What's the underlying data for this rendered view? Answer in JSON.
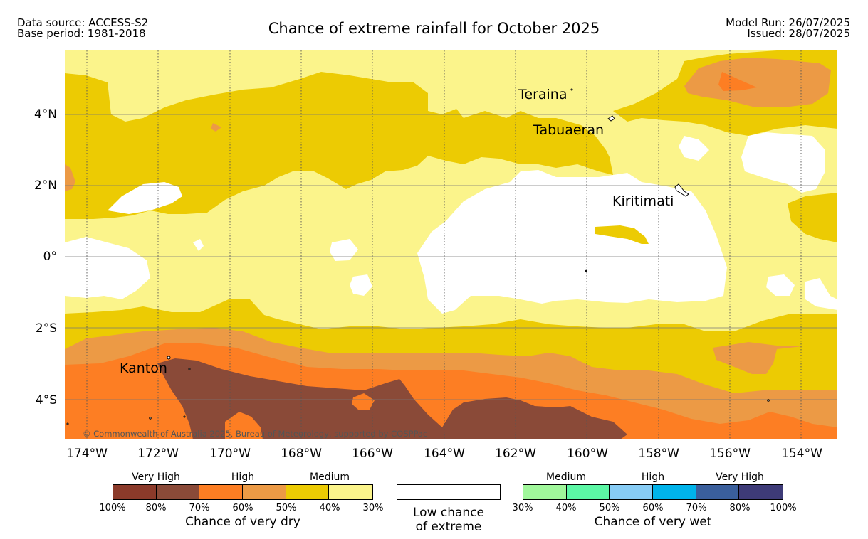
{
  "header": {
    "data_source": "Data source: ACCESS-S2",
    "base_period": "Base period: 1981-2018",
    "title": "Chance of extreme rainfall for October 2025",
    "model_run": "Model Run: 26/07/2025",
    "issued": "Issued: 28/07/2025"
  },
  "map": {
    "lon_range": [
      -174.6,
      -153.0
    ],
    "lat_range": [
      -5.1,
      5.8
    ],
    "x_ticks": [
      "174°W",
      "172°W",
      "170°W",
      "168°W",
      "166°W",
      "164°W",
      "162°W",
      "160°W",
      "158°W",
      "156°W",
      "154°W"
    ],
    "y_ticks": [
      "4°N",
      "2°N",
      "0°",
      "2°S",
      "4°S"
    ],
    "places": {
      "teraina": "Teraina",
      "tabuaeran": "Tabuaeran",
      "kiritimati": "Kiritimati",
      "kanton": "Kanton"
    },
    "copyright": "© Commonwealth of Australia 2025, Bureau of Meteorology, supported by COSPPac",
    "colors": {
      "dry_100_80": "#8b3a2a",
      "dry_80_70": "#8a4a38",
      "dry_70_60": "#fd7e23",
      "dry_60_50": "#ec9a45",
      "dry_50_40": "#eccb03",
      "dry_40_30": "#fbf48b",
      "low": "#ffffff",
      "wet_30_40": "#a0f79b",
      "wet_40_50": "#5cf7a5",
      "wet_50_60": "#87ccf5",
      "wet_60_70": "#00b3ea",
      "wet_70_80": "#3a5f9c",
      "wet_80_100": "#3e3b78"
    }
  },
  "legend": {
    "dry": {
      "very_high": "Very High",
      "high": "High",
      "medium": "Medium",
      "percents": [
        "100%",
        "80%",
        "70%",
        "60%",
        "50%",
        "40%",
        "30%"
      ],
      "caption": "Chance of very dry"
    },
    "low": {
      "line1": "Low chance",
      "line2": "of extreme"
    },
    "wet": {
      "medium": "Medium",
      "high": "High",
      "very_high": "Very High",
      "percents": [
        "30%",
        "40%",
        "50%",
        "60%",
        "70%",
        "80%",
        "100%"
      ],
      "caption": "Chance of very wet"
    }
  }
}
